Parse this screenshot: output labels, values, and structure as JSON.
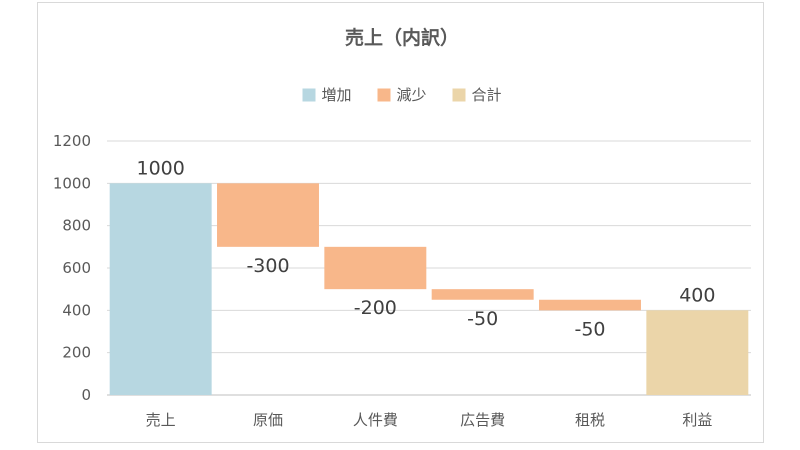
{
  "chart_data": {
    "type": "bar",
    "subtype": "waterfall",
    "title": "売上（内訳）",
    "categories": [
      "売上",
      "原価",
      "人件費",
      "広告費",
      "租税",
      "利益"
    ],
    "values": [
      1000,
      -300,
      -200,
      -50,
      -50,
      400
    ],
    "bar_kind": [
      "total",
      "decrease",
      "decrease",
      "decrease",
      "decrease",
      "total"
    ],
    "data_labels": [
      "1000",
      "-300",
      "-200",
      "-50",
      "-50",
      "400"
    ],
    "ylim": [
      0,
      1200
    ],
    "yticks": [
      0,
      200,
      400,
      600,
      800,
      1000,
      1200
    ],
    "grid": true,
    "legend": {
      "placement": "top",
      "entries": [
        {
          "label": "増加",
          "kind": "increase",
          "color": "#b7d7e1"
        },
        {
          "label": "減少",
          "kind": "decrease",
          "color": "#f8b78a"
        },
        {
          "label": "合計",
          "kind": "total",
          "color": "#ebd5a9"
        }
      ]
    },
    "colors": {
      "first_total": "#b7d7e1",
      "decrease": "#f8b78a",
      "last_total": "#ebd5a9",
      "grid": "#d9d9d9",
      "axis": "#bfbfbf"
    }
  }
}
